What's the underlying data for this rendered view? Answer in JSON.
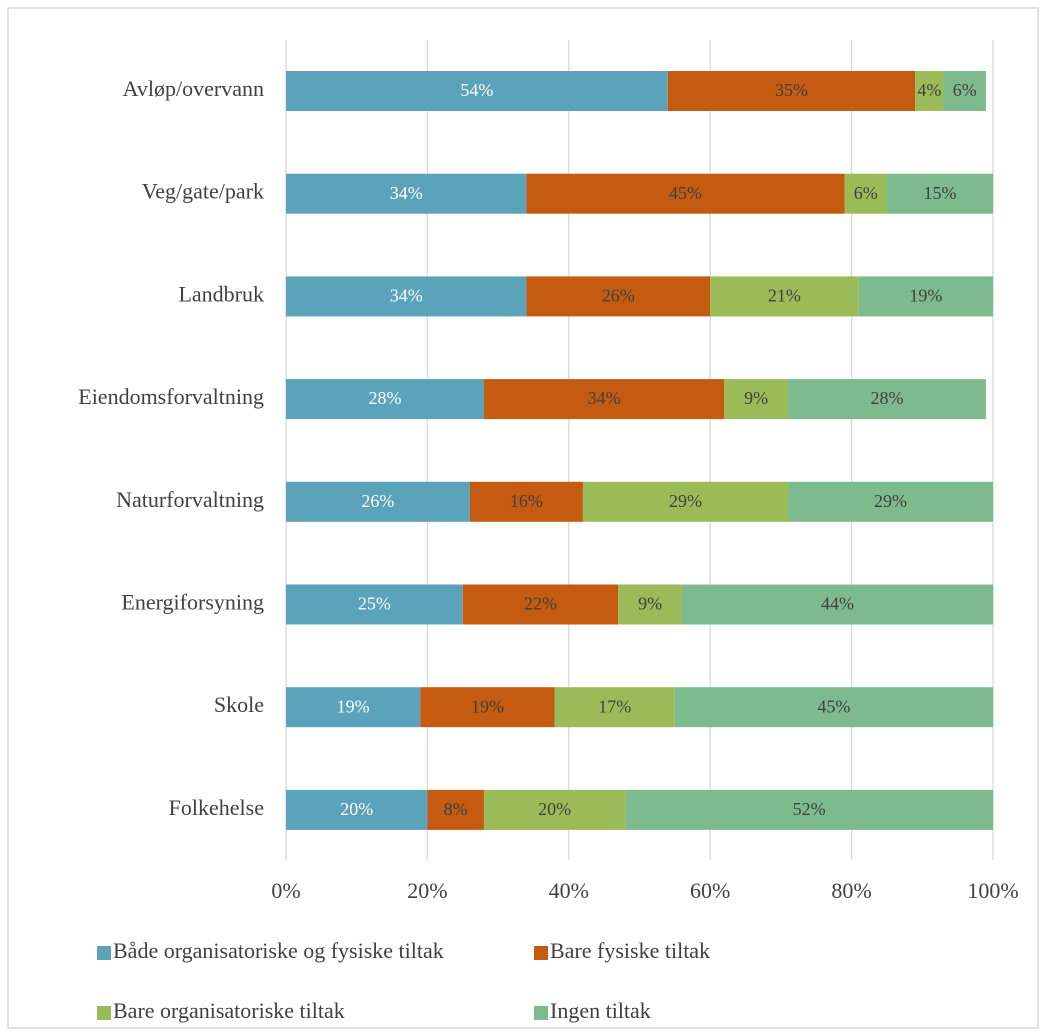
{
  "chart_data": {
    "type": "stacked-bar-horizontal",
    "categories": [
      "Avløp/overvann",
      "Veg/gate/park",
      "Landbruk",
      "Eiendomsforvaltning",
      "Naturforvaltning",
      "Energiforsyning",
      "Skole",
      "Folkehelse"
    ],
    "series": [
      {
        "name": "Både organisatoriske og fysiske tiltak",
        "color": "#5ba3ba",
        "label_color": "#ffffff",
        "values": [
          54,
          34,
          34,
          28,
          26,
          25,
          19,
          20
        ],
        "value_labels": [
          "54%",
          "34%",
          "34%",
          "28%",
          "26%",
          "25%",
          "19%",
          "20%"
        ]
      },
      {
        "name": "Bare fysiske tiltak",
        "color": "#c55a11",
        "label_color": "#404040",
        "values": [
          35,
          45,
          26,
          34,
          16,
          22,
          19,
          8
        ],
        "value_labels": [
          "35%",
          "45%",
          "26%",
          "34%",
          "16%",
          "22%",
          "19%",
          "8%"
        ]
      },
      {
        "name": "Bare organisatoriske tiltak",
        "color": "#9bbb59",
        "label_color": "#404040",
        "values": [
          4,
          6,
          21,
          9,
          29,
          9,
          17,
          20
        ],
        "value_labels": [
          "4%",
          "6%",
          "21%",
          "9%",
          "29%",
          "9%",
          "17%",
          "20%"
        ]
      },
      {
        "name": "Ingen tiltak",
        "color": "#7dbb8e",
        "label_color": "#404040",
        "values": [
          6,
          15,
          19,
          28,
          29,
          44,
          45,
          52
        ],
        "value_labels": [
          "6%",
          "15%",
          "19%",
          "28%",
          "29%",
          "44%",
          "45%",
          "52%"
        ]
      }
    ],
    "xlim": [
      0,
      100
    ],
    "xticks": [
      {
        "value": 0,
        "label": "0%"
      },
      {
        "value": 20,
        "label": "20%"
      },
      {
        "value": 40,
        "label": "40%"
      },
      {
        "value": 60,
        "label": "60%"
      },
      {
        "value": 80,
        "label": "80%"
      },
      {
        "value": 100,
        "label": "100%"
      }
    ],
    "grid": true,
    "legend": "bottom"
  }
}
